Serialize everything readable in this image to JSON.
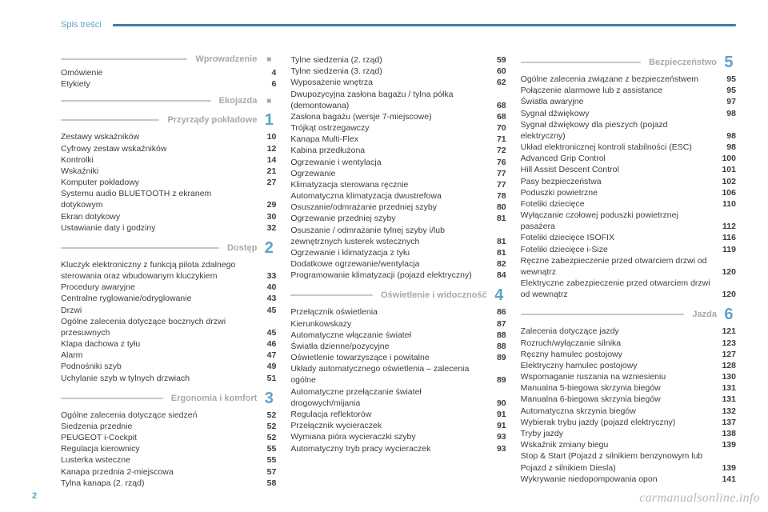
{
  "colors": {
    "accent": "#5fa3c9",
    "header_line": "#3e7fa5",
    "section_line": "#c7c7c7",
    "section_label": "#a9a9a9",
    "text": "#3d3d3d",
    "background": "#ffffff"
  },
  "header": {
    "title": "Spis treści"
  },
  "page_number": "2",
  "watermark": "carmanualsonline.info",
  "columns": [
    [
      {
        "label": "Wprowadzenie",
        "marker": "■",
        "items": [
          {
            "t": "Omówienie",
            "p": "4"
          },
          {
            "t": "Etykiety",
            "p": "6"
          }
        ]
      },
      {
        "label": "Ekojazda",
        "marker": "■",
        "items": []
      },
      {
        "label": "Przyrządy pokładowe",
        "marker": "1",
        "items": [
          {
            "t": "Zestawy wskaźników",
            "p": "10"
          },
          {
            "t": "Cyfrowy zestaw wskaźników",
            "p": "12"
          },
          {
            "t": "Kontrolki",
            "p": "14"
          },
          {
            "t": "Wskaźniki",
            "p": "21"
          },
          {
            "t": "Komputer pokładowy",
            "p": "27"
          },
          {
            "t": "Systemu audio BLUETOOTH z ekranem dotykowym",
            "p": "29"
          },
          {
            "t": "Ekran dotykowy",
            "p": "30"
          },
          {
            "t": "Ustawianie daty i godziny",
            "p": "32"
          }
        ]
      },
      {
        "label": "Dostęp",
        "marker": "2",
        "items": [
          {
            "t": "Kluczyk elektroniczny z funkcją pilota zdalnego sterowania oraz wbudowanym kluczykiem",
            "p": "33"
          },
          {
            "t": "Procedury awaryjne",
            "p": "40"
          },
          {
            "t": "Centralne ryglowanie/odryglowanie",
            "p": "43"
          },
          {
            "t": "Drzwi",
            "p": "45"
          },
          {
            "t": "Ogólne zalecenia dotyczące bocznych drzwi przesuwnych",
            "p": "45"
          },
          {
            "t": "Klapa dachowa z tyłu",
            "p": "46"
          },
          {
            "t": "Alarm",
            "p": "47"
          },
          {
            "t": "Podnośniki szyb",
            "p": "49"
          },
          {
            "t": "Uchylanie szyb w tylnych drzwiach",
            "p": "51"
          }
        ]
      },
      {
        "label": "Ergonomia i komfort",
        "marker": "3",
        "items": [
          {
            "t": "Ogólne zalecenia dotyczące siedzeń",
            "p": "52"
          },
          {
            "t": "Siedzenia przednie",
            "p": "52"
          },
          {
            "t": "PEUGEOT i-Cockpit",
            "p": "52"
          },
          {
            "t": "Regulacja kierownicy",
            "p": "55"
          },
          {
            "t": "Lusterka wsteczne",
            "p": "55"
          },
          {
            "t": "Kanapa przednia 2-miejscowa",
            "p": "57"
          },
          {
            "t": "Tylna kanapa (2. rząd)",
            "p": "58"
          }
        ]
      }
    ],
    [
      {
        "label": "",
        "marker": "",
        "items": [
          {
            "t": "Tylne siedzenia (2. rząd)",
            "p": "59"
          },
          {
            "t": "Tylne siedzenia (3. rząd)",
            "p": "60"
          },
          {
            "t": "Wyposażenie wnętrza",
            "p": "62"
          },
          {
            "t": "Dwupozycyjna zasłona bagażu / tylna półka (demontowana)",
            "p": "68"
          },
          {
            "t": "Zasłona bagażu (wersje 7-miejscowe)",
            "p": "68"
          },
          {
            "t": "Trójkąt ostrzegawczy",
            "p": "70"
          },
          {
            "t": "Kanapa Multi-Flex",
            "p": "71"
          },
          {
            "t": "Kabina przedłużona",
            "p": "72"
          },
          {
            "t": "Ogrzewanie i wentylacja",
            "p": "76"
          },
          {
            "t": "Ogrzewanie",
            "p": "77"
          },
          {
            "t": "Klimatyzacja sterowana ręcznie",
            "p": "77"
          },
          {
            "t": "Automatyczna klimatyzacja dwustrefowa",
            "p": "78"
          },
          {
            "t": "Osuszanie/odmrażanie przedniej szyby",
            "p": "80"
          },
          {
            "t": "Ogrzewanie przedniej szyby",
            "p": "81"
          },
          {
            "t": "Osuszanie / odmrażanie tylnej szyby i/lub zewnętrznych lusterek wstecznych",
            "p": "81"
          },
          {
            "t": "Ogrzewanie i klimatyzacja z tyłu",
            "p": "81"
          },
          {
            "t": "Dodatkowe ogrzewanie/wentylacja",
            "p": "82"
          },
          {
            "t": "Programowanie klimatyzacji (pojazd elektryczny)",
            "p": "84"
          }
        ]
      },
      {
        "label": "Oświetlenie i widoczność",
        "marker": "4",
        "items": [
          {
            "t": "Przełącznik oświetlenia",
            "p": "86"
          },
          {
            "t": "Kierunkowskazy",
            "p": "87"
          },
          {
            "t": "Automatyczne włączanie świateł",
            "p": "88"
          },
          {
            "t": "Światła dzienne/pozycyjne",
            "p": "88"
          },
          {
            "t": "Oświetlenie towarzyszące i powitalne",
            "p": "89"
          },
          {
            "t": "Układy automatycznego oświetlenia – zalecenia ogólne",
            "p": "89"
          },
          {
            "t": "Automatyczne przełączanie świateł drogowych/mijania",
            "p": "90"
          },
          {
            "t": "Regulacja reflektorów",
            "p": "91"
          },
          {
            "t": "Przełącznik wycieraczek",
            "p": "91"
          },
          {
            "t": "Wymiana pióra wycieraczki szyby",
            "p": "93"
          },
          {
            "t": "Automatyczny tryb pracy wycieraczek",
            "p": "93"
          }
        ]
      }
    ],
    [
      {
        "label": "Bezpieczeństwo",
        "marker": "5",
        "items": [
          {
            "t": "Ogólne zalecenia związane z bezpieczeństwem",
            "p": "95"
          },
          {
            "t": "Połączenie alarmowe lub z assistance",
            "p": "95"
          },
          {
            "t": "Światła awaryjne",
            "p": "97"
          },
          {
            "t": "Sygnał dźwiękowy",
            "p": "98"
          },
          {
            "t": "Sygnał dźwiękowy dla pieszych (pojazd elektryczny)",
            "p": "98"
          },
          {
            "t": "Układ elektronicznej kontroli stabilności (ESC)",
            "p": "98"
          },
          {
            "t": "Advanced Grip Control",
            "p": "100"
          },
          {
            "t": "Hill Assist Descent Control",
            "p": "101"
          },
          {
            "t": "Pasy bezpieczeństwa",
            "p": "102"
          },
          {
            "t": "Poduszki powietrzne",
            "p": "106"
          },
          {
            "t": "Foteliki dziecięce",
            "p": "110"
          },
          {
            "t": "Wyłączanie czołowej poduszki powietrznej pasażera",
            "p": "112"
          },
          {
            "t": "Foteliki dziecięce ISOFIX",
            "p": "116"
          },
          {
            "t": "Foteliki dziecięce i-Size",
            "p": "119"
          },
          {
            "t": "Ręczne zabezpieczenie przed otwarciem drzwi od wewnątrz",
            "p": "120"
          },
          {
            "t": "Elektryczne zabezpieczenie przed otwarciem drzwi od wewnątrz",
            "p": "120"
          }
        ]
      },
      {
        "label": "Jazda",
        "marker": "6",
        "items": [
          {
            "t": "Zalecenia dotyczące jazdy",
            "p": "121"
          },
          {
            "t": "Rozruch/wyłączanie silnika",
            "p": "123"
          },
          {
            "t": "Ręczny hamulec postojowy",
            "p": "127"
          },
          {
            "t": "Elektryczny hamulec postojowy",
            "p": "128"
          },
          {
            "t": "Wspomaganie ruszania na wzniesieniu",
            "p": "130"
          },
          {
            "t": "Manualna 5-biegowa skrzynia biegów",
            "p": "131"
          },
          {
            "t": "Manualna 6-biegowa skrzynia biegów",
            "p": "131"
          },
          {
            "t": "Automatyczna skrzynia biegów",
            "p": "132"
          },
          {
            "t": "Wybierak trybu jazdy (pojazd elektryczny)",
            "p": "137"
          },
          {
            "t": "Tryby jazdy",
            "p": "138"
          },
          {
            "t": "Wskaźnik zmiany biegu",
            "p": "139"
          },
          {
            "t": "Stop & Start (Pojazd z silnikiem benzynowym lub Pojazd z silnikiem Diesla)",
            "p": "139"
          },
          {
            "t": "Wykrywanie niedopompowania opon",
            "p": "141"
          }
        ]
      }
    ]
  ]
}
